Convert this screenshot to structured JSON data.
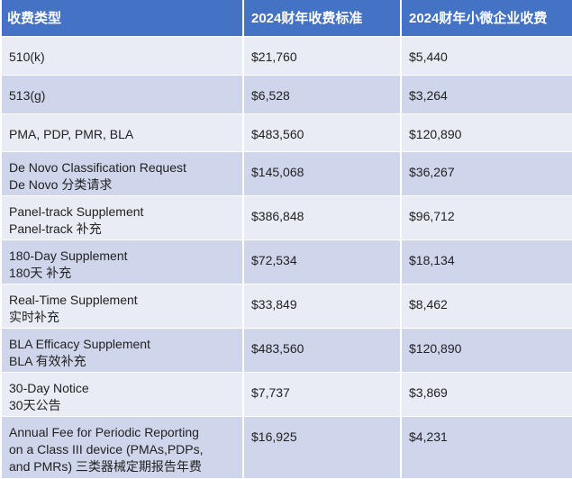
{
  "headers": [
    "收费类型",
    "2024财年收费标准",
    "2024财年小微企业收费"
  ],
  "rows": [
    {
      "type_lines": [
        "510(k)"
      ],
      "standard": "$21,760",
      "small": "$5,440"
    },
    {
      "type_lines": [
        "513(g)"
      ],
      "standard": "$6,528",
      "small": "$3,264"
    },
    {
      "type_lines": [
        "PMA, PDP, PMR, BLA"
      ],
      "standard": "$483,560",
      "small": "$120,890"
    },
    {
      "type_lines": [
        "De Novo Classification Request",
        "De Novo 分类请求"
      ],
      "standard": "$145,068",
      "small": "$36,267"
    },
    {
      "type_lines": [
        "Panel-track Supplement",
        "Panel-track 补充"
      ],
      "standard": "$386,848",
      "small": "$96,712"
    },
    {
      "type_lines": [
        "180-Day Supplement",
        "180天 补充"
      ],
      "standard": "$72,534",
      "small": "$18,134"
    },
    {
      "type_lines": [
        "Real-Time Supplement",
        "实时补充"
      ],
      "standard": "$33,849",
      "small": "$8,462"
    },
    {
      "type_lines": [
        "BLA Efficacy Supplement",
        "BLA 有效补充"
      ],
      "standard": "$483,560",
      "small": "$120,890"
    },
    {
      "type_lines": [
        "30-Day Notice",
        "30天公告"
      ],
      "standard": "$7,737",
      "small": "$3,869"
    },
    {
      "type_lines": [
        "Annual Fee for Periodic Reporting",
        "on a Class III device (PMAs,PDPs,",
        "and PMRs) 三类器械定期报告年费"
      ],
      "standard": "$16,925",
      "small": "$4,231"
    }
  ]
}
